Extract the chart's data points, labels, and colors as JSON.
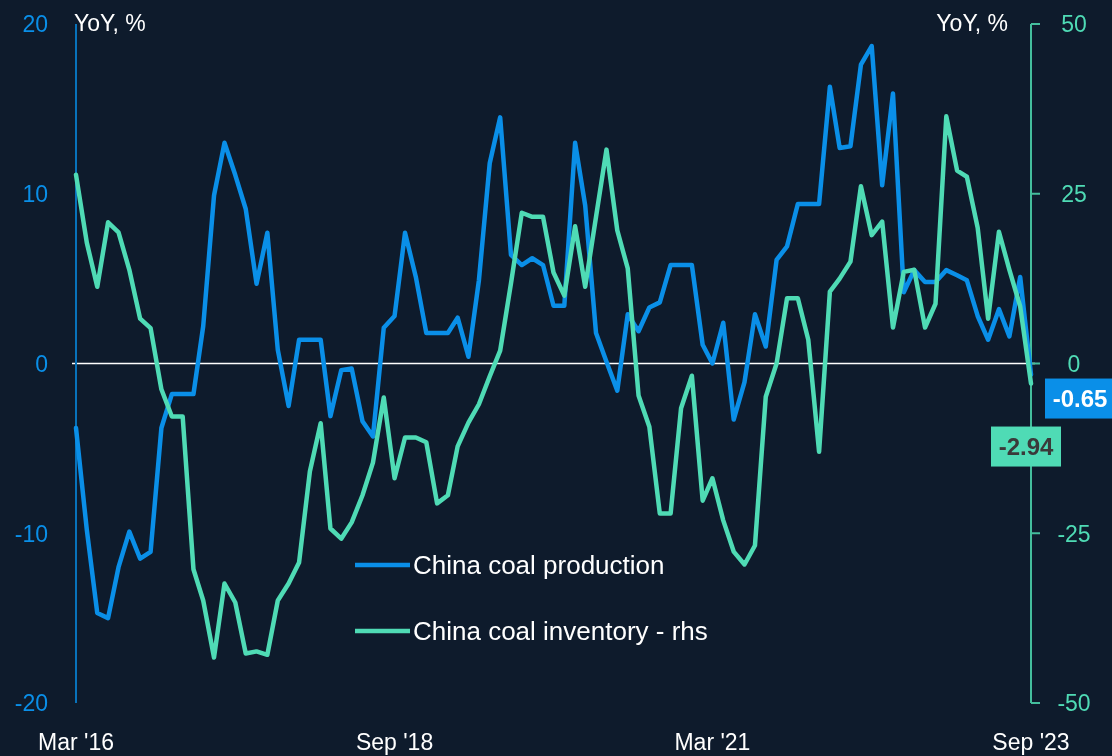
{
  "chart_data": {
    "type": "line",
    "ylabel": "YoY, %",
    "y2label": "YoY, %",
    "x": [
      "2016-03",
      "2016-04",
      "2016-05",
      "2016-06",
      "2016-07",
      "2016-08",
      "2016-09",
      "2016-10",
      "2016-11",
      "2016-12",
      "2017-01",
      "2017-02",
      "2017-03",
      "2017-04",
      "2017-05",
      "2017-06",
      "2017-07",
      "2017-08",
      "2017-09",
      "2017-10",
      "2017-11",
      "2017-12",
      "2018-01",
      "2018-02",
      "2018-03",
      "2018-04",
      "2018-05",
      "2018-06",
      "2018-07",
      "2018-08",
      "2018-09",
      "2018-10",
      "2018-11",
      "2018-12",
      "2019-01",
      "2019-02",
      "2019-03",
      "2019-04",
      "2019-05",
      "2019-06",
      "2019-07",
      "2019-08",
      "2019-09",
      "2019-10",
      "2019-11",
      "2019-12",
      "2020-01",
      "2020-02",
      "2020-03",
      "2020-04",
      "2020-05",
      "2020-06",
      "2020-07",
      "2020-08",
      "2020-09",
      "2020-10",
      "2020-11",
      "2020-12",
      "2021-01",
      "2021-02",
      "2021-03",
      "2021-04",
      "2021-05",
      "2021-06",
      "2021-07",
      "2021-08",
      "2021-09",
      "2021-10",
      "2021-11",
      "2021-12",
      "2022-01",
      "2022-02",
      "2022-03",
      "2022-04",
      "2022-05",
      "2022-06",
      "2022-07",
      "2022-08",
      "2022-09",
      "2022-10",
      "2022-11",
      "2022-12",
      "2023-01",
      "2023-02",
      "2023-03",
      "2023-04",
      "2023-05",
      "2023-06",
      "2023-07",
      "2023-08",
      "2023-09"
    ],
    "xlim": [
      "2016-03",
      "2023-09"
    ],
    "xticks": [
      {
        "value": "2016-03",
        "label": "Mar '16"
      },
      {
        "value": "2018-09",
        "label": "Sep '18"
      },
      {
        "value": "2021-03",
        "label": "Mar '21"
      },
      {
        "value": "2023-09",
        "label": "Sep '23"
      }
    ],
    "ylim": [
      -20,
      20
    ],
    "yticks": [
      -20,
      -10,
      0,
      10,
      20
    ],
    "y2lim": [
      -50,
      50
    ],
    "y2ticks": [
      -50,
      -25,
      0,
      25,
      50
    ],
    "ref_lines": [
      {
        "axis": "y",
        "value": 0,
        "color": "#ffffff"
      }
    ],
    "legend": "bottom",
    "marker": "none",
    "line_style": "solid",
    "series": [
      {
        "name": "China coal production",
        "color": "#0a8fe8",
        "values": [
          -3.8,
          -9.8,
          -14.7,
          -15.0,
          -12.0,
          -9.9,
          -11.5,
          -11.1,
          -3.8,
          -1.8,
          -1.8,
          -1.8,
          2.2,
          9.9,
          13.0,
          11.1,
          9.1,
          4.7,
          7.7,
          0.8,
          -2.5,
          1.4,
          1.4,
          1.4,
          -3.1,
          -0.4,
          -0.3,
          -3.4,
          -4.3,
          2.1,
          2.8,
          7.7,
          5.1,
          1.8,
          1.8,
          1.8,
          2.7,
          0.4,
          4.9,
          11.8,
          14.5,
          6.4,
          5.8,
          6.2,
          5.8,
          3.4,
          3.4,
          13.0,
          9.3,
          1.8,
          0.1,
          -1.6,
          2.9,
          1.9,
          3.3,
          3.6,
          5.8,
          5.8,
          5.8,
          1.1,
          0,
          2.4,
          -3.3,
          -1.1,
          2.9,
          1.0,
          6.1,
          6.9,
          9.4,
          9.4,
          9.4,
          16.3,
          12.7,
          12.8,
          17.6,
          18.7,
          10.5,
          15.9,
          4.2,
          5.5,
          4.8,
          4.8,
          5.5,
          5.2,
          4.9,
          2.8,
          1.4,
          3.2,
          1.6,
          5.1,
          -0.65
        ],
        "value_labels": [
          null,
          null,
          null,
          null,
          null,
          null,
          null,
          null,
          null,
          null,
          null,
          null,
          null,
          null,
          null,
          null,
          null,
          null,
          null,
          null,
          null,
          null,
          null,
          null,
          null,
          null,
          null,
          null,
          null,
          null,
          null,
          null,
          null,
          null,
          null,
          null,
          null,
          null,
          null,
          null,
          null,
          null,
          null,
          null,
          null,
          null,
          null,
          null,
          null,
          null,
          null,
          null,
          null,
          null,
          null,
          null,
          null,
          null,
          null,
          null,
          null,
          null,
          null,
          null,
          null,
          null,
          null,
          null,
          null,
          null,
          null,
          null,
          null,
          null,
          null,
          null,
          null,
          null,
          null,
          null,
          null,
          null,
          null,
          null,
          null,
          null,
          null,
          null,
          null,
          null,
          "-0.65"
        ]
      },
      {
        "name": "China coal inventory - rhs",
        "color": "#4fdbb5",
        "axis": "y2",
        "values": [
          27.8,
          17.8,
          11.3,
          20.8,
          19.3,
          13.8,
          6.6,
          5.2,
          -3.8,
          -7.8,
          -7.8,
          -30.3,
          -34.9,
          -43.3,
          -32.4,
          -35.2,
          -42.7,
          -42.4,
          -42.9,
          -34.9,
          -32.4,
          -29.3,
          -15.9,
          -8.8,
          -24.3,
          -25.8,
          -23.4,
          -19.4,
          -14.6,
          -5.0,
          -16.9,
          -10.9,
          -10.9,
          -11.6,
          -20.6,
          -19.4,
          -12.2,
          -8.7,
          -6.0,
          -1.9,
          1.9,
          11.8,
          22.2,
          21.6,
          21.6,
          13.4,
          10.0,
          20.2,
          11.3,
          21.6,
          31.5,
          19.6,
          14.0,
          -4.7,
          -9.3,
          -22.1,
          -22.1,
          -6.6,
          -1.8,
          -20.2,
          -16.9,
          -23.1,
          -27.7,
          -29.6,
          -26.8,
          -4.9,
          0,
          9.6,
          9.6,
          3.5,
          -13.0,
          10.6,
          12.5,
          15.0,
          26.1,
          18.9,
          20.9,
          5.3,
          13.5,
          13.8,
          5.3,
          8.8,
          36.4,
          28.4,
          27.5,
          20.0,
          6.6,
          19.4,
          13.8,
          8.4,
          -2.94
        ],
        "value_labels": [
          null,
          null,
          null,
          null,
          null,
          null,
          null,
          null,
          null,
          null,
          null,
          null,
          null,
          null,
          null,
          null,
          null,
          null,
          null,
          null,
          null,
          null,
          null,
          null,
          null,
          null,
          null,
          null,
          null,
          null,
          null,
          null,
          null,
          null,
          null,
          null,
          null,
          null,
          null,
          null,
          null,
          null,
          null,
          null,
          null,
          null,
          null,
          null,
          null,
          null,
          null,
          null,
          null,
          null,
          null,
          null,
          null,
          null,
          null,
          null,
          null,
          null,
          null,
          null,
          null,
          null,
          null,
          null,
          null,
          null,
          null,
          null,
          null,
          null,
          null,
          null,
          null,
          null,
          null,
          null,
          null,
          null,
          null,
          null,
          null,
          null,
          null,
          null,
          null,
          null,
          "-2.94"
        ]
      }
    ]
  }
}
